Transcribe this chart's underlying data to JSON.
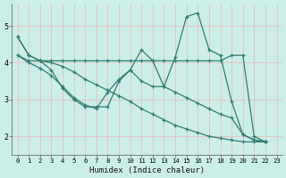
{
  "xlabel": "Humidex (Indice chaleur)",
  "background_color": "#cceee8",
  "line_color": "#2e7d72",
  "grid_color": "#e8f8f5",
  "xlim": [
    -0.5,
    23.5
  ],
  "ylim": [
    1.5,
    5.6
  ],
  "yticks": [
    2,
    3,
    4,
    5
  ],
  "xticks": [
    0,
    1,
    2,
    3,
    4,
    5,
    6,
    7,
    8,
    9,
    10,
    11,
    12,
    13,
    14,
    15,
    16,
    17,
    18,
    19,
    20,
    21,
    22,
    23
  ],
  "series": [
    {
      "x": [
        0,
        1,
        2,
        3,
        4,
        5,
        6,
        7,
        8,
        9,
        10,
        11,
        12,
        13,
        14,
        15,
        16,
        17,
        18,
        19,
        20,
        21,
        22
      ],
      "y": [
        4.7,
        4.2,
        4.05,
        3.8,
        3.3,
        3.0,
        2.8,
        2.8,
        2.8,
        3.5,
        3.8,
        4.35,
        4.05,
        3.35,
        4.15,
        5.25,
        5.35,
        4.35,
        4.2,
        2.95,
        2.05,
        1.9,
        1.85
      ]
    },
    {
      "x": [
        0,
        1,
        2,
        3,
        4,
        5,
        6,
        7,
        8,
        9,
        10,
        11,
        12,
        13,
        14,
        15,
        16,
        17,
        18,
        19,
        20,
        21,
        22
      ],
      "y": [
        4.2,
        4.05,
        4.05,
        4.05,
        4.05,
        4.05,
        4.05,
        4.05,
        4.05,
        4.05,
        4.05,
        4.05,
        4.05,
        4.05,
        4.05,
        4.05,
        4.05,
        4.05,
        4.05,
        4.2,
        4.2,
        2.0,
        1.85
      ]
    },
    {
      "x": [
        0,
        1,
        2,
        3,
        4,
        5,
        6,
        7,
        8,
        9,
        10,
        11,
        12,
        13,
        14,
        15,
        16,
        17,
        18,
        19,
        20,
        21,
        22
      ],
      "y": [
        4.2,
        4.0,
        3.85,
        3.65,
        3.35,
        3.05,
        2.85,
        2.75,
        3.2,
        3.55,
        3.8,
        3.5,
        3.35,
        3.35,
        3.2,
        3.05,
        2.9,
        2.75,
        2.6,
        2.5,
        2.05,
        1.9,
        1.85
      ]
    },
    {
      "x": [
        0,
        1,
        2,
        3,
        4,
        5,
        6,
        7,
        8,
        9,
        10,
        11,
        12,
        13,
        14,
        15,
        16,
        17,
        18,
        19,
        20,
        21,
        22
      ],
      "y": [
        4.7,
        4.2,
        4.05,
        4.0,
        3.9,
        3.75,
        3.55,
        3.4,
        3.25,
        3.1,
        2.95,
        2.75,
        2.6,
        2.45,
        2.3,
        2.2,
        2.1,
        2.0,
        1.95,
        1.9,
        1.85,
        1.85,
        1.85
      ]
    }
  ]
}
